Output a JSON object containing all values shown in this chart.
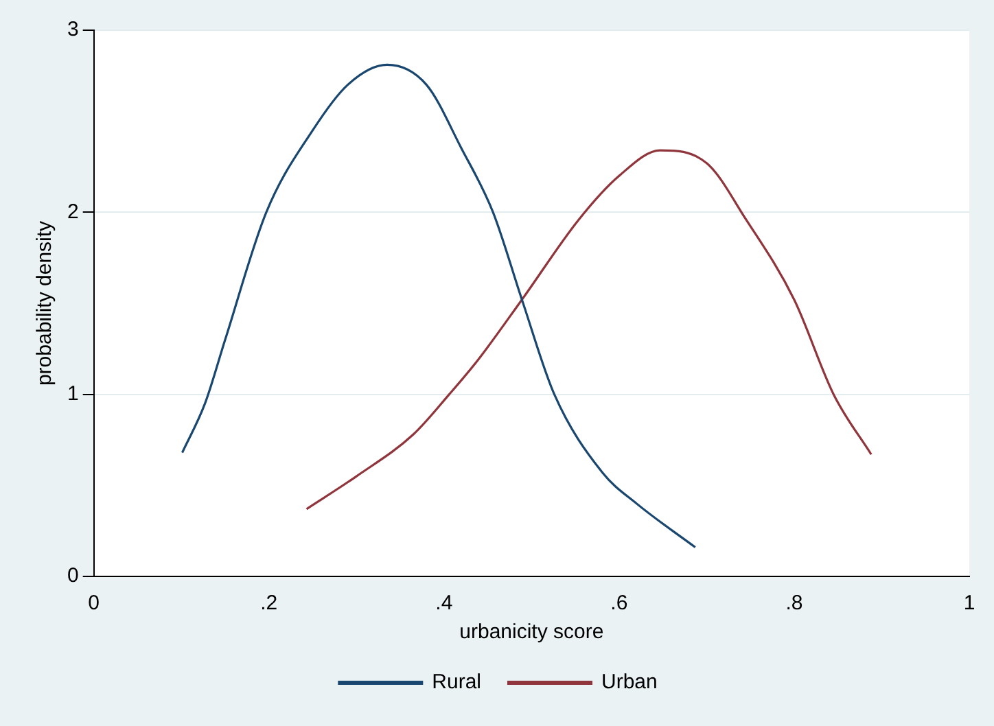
{
  "chart_data": {
    "type": "line",
    "xlabel": "urbanicity score",
    "ylabel": "probability density",
    "xlim": [
      0,
      1
    ],
    "xticks": [
      0,
      {
        "value": 0.2,
        "label": ".2"
      },
      {
        "value": 0.4,
        "label": ".4"
      },
      {
        "value": 0.6,
        "label": ".6"
      },
      {
        "value": 0.8,
        "label": ".8"
      },
      1
    ],
    "ylim": [
      0,
      3
    ],
    "yticks": [
      0,
      1,
      2,
      3
    ],
    "grid": "y",
    "legend": "bottom",
    "marker": "none",
    "line_style": "solid",
    "series": [
      {
        "name": "Rural",
        "color": "#1a476f",
        "x": [
          0.101,
          0.127,
          0.15,
          0.197,
          0.25,
          0.29,
          0.335,
          0.38,
          0.42,
          0.456,
          0.489,
          0.526,
          0.581,
          0.62,
          0.687
        ],
        "values": [
          0.68,
          0.95,
          1.3,
          2.0,
          2.45,
          2.7,
          2.81,
          2.7,
          2.35,
          2.0,
          1.52,
          1.0,
          0.57,
          0.4,
          0.16
        ]
      },
      {
        "name": "Urban",
        "color": "#90353b",
        "x": [
          0.243,
          0.3,
          0.365,
          0.406,
          0.439,
          0.489,
          0.554,
          0.6,
          0.647,
          0.7,
          0.745,
          0.8,
          0.845,
          0.888
        ],
        "values": [
          0.37,
          0.55,
          0.78,
          1.0,
          1.19,
          1.52,
          1.96,
          2.2,
          2.34,
          2.27,
          1.96,
          1.52,
          1.0,
          0.67
        ]
      }
    ]
  }
}
